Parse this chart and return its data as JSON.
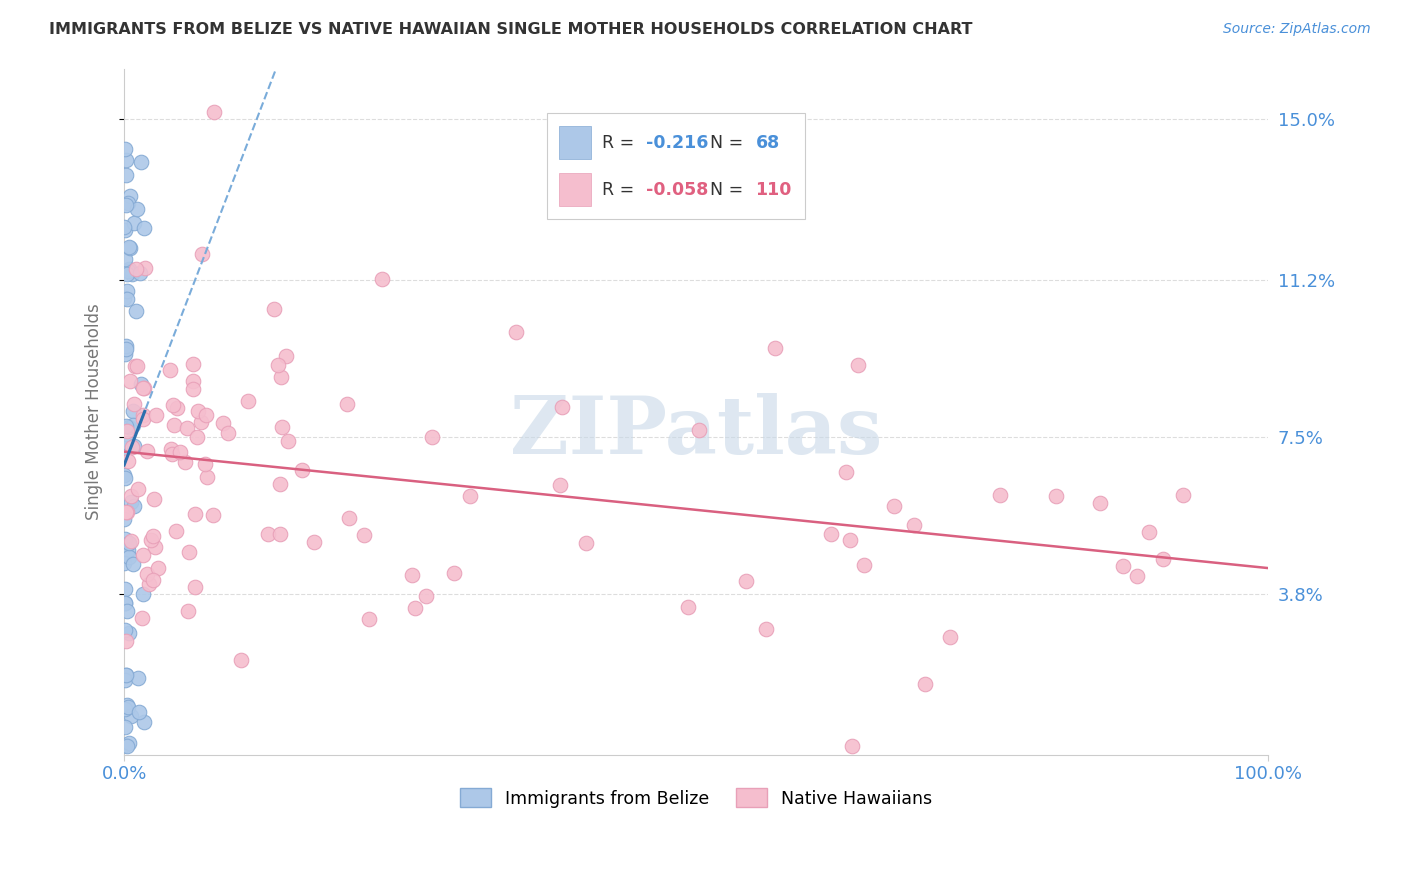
{
  "title": "IMMIGRANTS FROM BELIZE VS NATIVE HAWAIIAN SINGLE MOTHER HOUSEHOLDS CORRELATION CHART",
  "source": "Source: ZipAtlas.com",
  "ylabel": "Single Mother Households",
  "ytick_labels": [
    "3.8%",
    "7.5%",
    "11.2%",
    "15.0%"
  ],
  "ytick_values": [
    0.038,
    0.075,
    0.112,
    0.15
  ],
  "blue_R": -0.216,
  "blue_N": 68,
  "pink_R": -0.058,
  "pink_N": 110,
  "blue_color": "#adc8e8",
  "pink_color": "#f5bece",
  "blue_edge_color": "#85aad4",
  "pink_edge_color": "#e8a0b8",
  "blue_line_color": "#2c6fad",
  "pink_line_color": "#d96080",
  "blue_line_dash_color": "#7aacda",
  "xlim": [
    0.0,
    1.0
  ],
  "ylim": [
    0.0,
    0.162
  ],
  "background_color": "#ffffff",
  "grid_color": "#dddddd",
  "title_color": "#333333",
  "axis_label_color": "#777777",
  "tick_color": "#4a90d9",
  "watermark_text": "ZIPatlas",
  "watermark_color": "#c8d8e8",
  "legend_blue_r": "R = ",
  "legend_blue_r_val": "-0.216",
  "legend_blue_n": "N = ",
  "legend_blue_n_val": "68",
  "legend_pink_r": "R = ",
  "legend_pink_r_val": "-0.058",
  "legend_pink_n": "N = ",
  "legend_pink_n_val": "110",
  "legend_val_color_blue": "#4a90d9",
  "legend_val_color_pink": "#e06080",
  "bottom_legend_label_blue": "Immigrants from Belize",
  "bottom_legend_label_pink": "Native Hawaiians"
}
